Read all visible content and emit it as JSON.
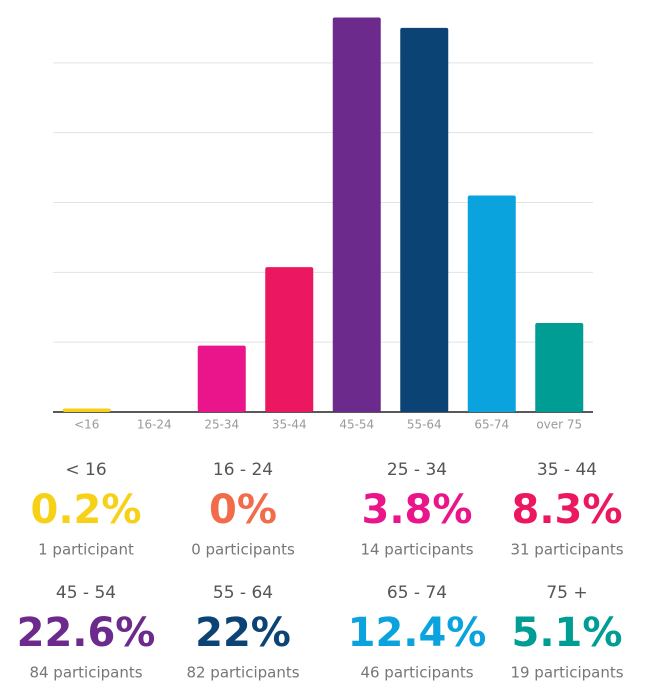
{
  "chart_data": {
    "type": "bar",
    "categories": [
      "<16",
      "16-24",
      "25-34",
      "35-44",
      "45-54",
      "55-64",
      "65-74",
      "over 75"
    ],
    "values": [
      0.2,
      0,
      3.8,
      8.3,
      22.6,
      22,
      12.4,
      5.1
    ],
    "colors": [
      "#f7d117",
      "#f26b4a",
      "#ea148b",
      "#ec1761",
      "#6c2a8d",
      "#0b4474",
      "#0aa3de",
      "#009d94"
    ],
    "ylim": [
      0,
      24
    ],
    "yticks": [
      0,
      4,
      8,
      12,
      16,
      20
    ],
    "grid": true
  },
  "stats": [
    {
      "label": "< 16",
      "percent": "0.2%",
      "participants": "1 participant"
    },
    {
      "label": "16 - 24",
      "percent": "0%",
      "participants": "0 participants"
    },
    {
      "label": "25 - 34",
      "percent": "3.8%",
      "participants": "14 participants"
    },
    {
      "label": "35 - 44",
      "percent": "8.3%",
      "participants": "31 participants"
    },
    {
      "label": "45 - 54",
      "percent": "22.6%",
      "participants": "84 participants"
    },
    {
      "label": "55 - 64",
      "percent": "22%",
      "participants": "82 participants"
    },
    {
      "label": "65 - 74",
      "percent": "12.4%",
      "participants": "46 participants"
    },
    {
      "label": "75 +",
      "percent": "5.1%",
      "participants": "19 participants"
    }
  ]
}
